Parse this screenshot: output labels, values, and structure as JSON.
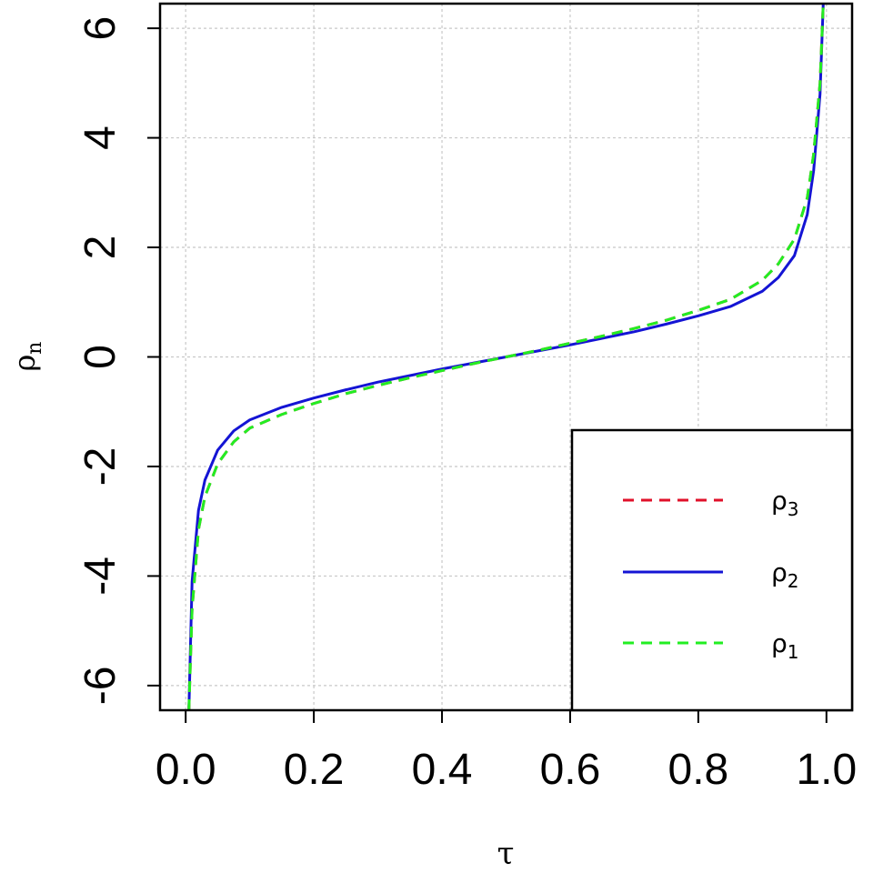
{
  "chart_data": {
    "type": "line",
    "title": "",
    "xlabel": "τ",
    "ylabel": {
      "base": "ρ",
      "sub": "n"
    },
    "xlim": [
      -0.04,
      1.04
    ],
    "ylim": [
      -6.45,
      6.45
    ],
    "xticks": [
      0.0,
      0.2,
      0.4,
      0.6,
      0.8,
      1.0
    ],
    "xtick_labels": [
      "0.0",
      "0.2",
      "0.4",
      "0.6",
      "0.8",
      "1.0"
    ],
    "yticks": [
      -6,
      -4,
      -2,
      0,
      2,
      4,
      6
    ],
    "ytick_labels": [
      "-6",
      "-4",
      "-2",
      "0",
      "2",
      "4",
      "6"
    ],
    "grid": true,
    "legend_position": "bottom-right",
    "x": [
      0.005,
      0.01,
      0.02,
      0.03,
      0.05,
      0.075,
      0.1,
      0.15,
      0.2,
      0.25,
      0.3,
      0.35,
      0.4,
      0.45,
      0.5,
      0.55,
      0.6,
      0.65,
      0.7,
      0.75,
      0.8,
      0.85,
      0.9,
      0.925,
      0.95,
      0.97,
      0.98,
      0.99,
      0.995
    ],
    "series": [
      {
        "name": "ρ3",
        "label": {
          "base": "ρ",
          "sub": "3"
        },
        "color": "#e0102a",
        "dash": "dashed",
        "values": [
          -6.45,
          -4.6,
          -3.15,
          -2.55,
          -1.95,
          -1.55,
          -1.3,
          -1.05,
          -0.85,
          -0.67,
          -0.52,
          -0.38,
          -0.25,
          -0.12,
          0.0,
          0.12,
          0.25,
          0.38,
          0.52,
          0.67,
          0.85,
          1.05,
          1.4,
          1.7,
          2.15,
          2.9,
          3.7,
          5.0,
          6.45
        ]
      },
      {
        "name": "ρ2",
        "label": {
          "base": "ρ",
          "sub": "2"
        },
        "color": "#1414d4",
        "dash": "solid",
        "values": [
          -6.45,
          -4.1,
          -2.8,
          -2.25,
          -1.7,
          -1.35,
          -1.15,
          -0.92,
          -0.75,
          -0.6,
          -0.46,
          -0.34,
          -0.22,
          -0.11,
          0.0,
          0.11,
          0.22,
          0.34,
          0.46,
          0.6,
          0.75,
          0.92,
          1.2,
          1.45,
          1.85,
          2.6,
          3.4,
          4.8,
          6.45
        ]
      },
      {
        "name": "ρ1",
        "label": {
          "base": "ρ",
          "sub": "1"
        },
        "color": "#22ee22",
        "dash": "dashed",
        "values": [
          -6.45,
          -4.6,
          -3.15,
          -2.55,
          -1.95,
          -1.55,
          -1.3,
          -1.05,
          -0.85,
          -0.67,
          -0.52,
          -0.38,
          -0.25,
          -0.12,
          0.0,
          0.12,
          0.25,
          0.38,
          0.52,
          0.67,
          0.85,
          1.05,
          1.4,
          1.7,
          2.15,
          2.9,
          3.7,
          5.0,
          6.45
        ]
      }
    ]
  }
}
